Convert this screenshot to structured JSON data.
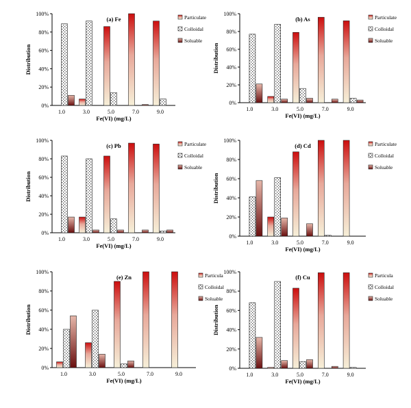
{
  "chart_data": [
    {
      "type": "bar",
      "title": "(a) Fe",
      "xlabel": "Fe(VI) (mg/L)",
      "ylabel": "Distribution",
      "ylim": [
        0,
        100
      ],
      "yticks": [
        "0%",
        "20%",
        "40%",
        "60%",
        "80%",
        "100%"
      ],
      "categories": [
        "1.0",
        "3.0",
        "5.0",
        "7.0",
        "9.0"
      ],
      "legend_position": "right",
      "legend": [
        "Particulate",
        "Colloidal",
        "Soluable"
      ],
      "series": [
        {
          "name": "Particulate",
          "values": [
            0,
            7,
            86,
            100,
            92
          ]
        },
        {
          "name": "Colloidal",
          "values": [
            89,
            92,
            14,
            0,
            7
          ]
        },
        {
          "name": "Soluable",
          "values": [
            11,
            0,
            0,
            1,
            0
          ]
        }
      ]
    },
    {
      "type": "bar",
      "title": "(b) As",
      "xlabel": "Fe(VI) (mg/L)",
      "ylabel": "Distribution",
      "ylim": [
        0,
        100
      ],
      "yticks": [
        "0%",
        "20%",
        "40%",
        "60%",
        "80%",
        "100%"
      ],
      "categories": [
        "1.0",
        "3.0",
        "5.0",
        "7.0",
        "9.0"
      ],
      "legend_position": "right",
      "legend": [
        "Particulate",
        "Colloidal",
        "Soluable"
      ],
      "series": [
        {
          "name": "Particulate",
          "values": [
            0,
            7,
            79,
            96,
            92
          ]
        },
        {
          "name": "Colloidal",
          "values": [
            77,
            88,
            16,
            0,
            5
          ]
        },
        {
          "name": "Soluable",
          "values": [
            21,
            4,
            5,
            4,
            3
          ]
        }
      ]
    },
    {
      "type": "bar",
      "title": "(c) Pb",
      "xlabel": "Fe(VI) (mg/L)",
      "ylabel": "Distribution",
      "ylim": [
        0,
        100
      ],
      "yticks": [
        "0%",
        "20%",
        "40%",
        "60%",
        "80%",
        "100%"
      ],
      "categories": [
        "1.0",
        "3.0",
        "5.0",
        "7.0",
        "9.0"
      ],
      "legend_position": "right",
      "legend": [
        "Particulate",
        "Colloidal",
        "Soluable"
      ],
      "series": [
        {
          "name": "Particulate",
          "values": [
            0,
            17,
            83,
            97,
            96
          ]
        },
        {
          "name": "Colloidal",
          "values": [
            83,
            80,
            15,
            0,
            2
          ]
        },
        {
          "name": "Soluable",
          "values": [
            17,
            3,
            3,
            3,
            3
          ]
        }
      ]
    },
    {
      "type": "bar",
      "title": "(d) Cd",
      "xlabel": "Fe(VI) (mg/L)",
      "ylabel": "Distribution",
      "ylim": [
        0,
        100
      ],
      "yticks": [
        "0%",
        "20%",
        "40%",
        "60%",
        "80%",
        "100%"
      ],
      "categories": [
        "1.0",
        "3.0",
        "5.0",
        "7.0",
        "9.0"
      ],
      "legend_position": "right",
      "legend": [
        "Particulate",
        "Colloidal",
        "Soluable"
      ],
      "series": [
        {
          "name": "Particulate",
          "values": [
            0,
            20,
            88,
            100,
            100
          ]
        },
        {
          "name": "Colloidal",
          "values": [
            41,
            61,
            0,
            1,
            0
          ]
        },
        {
          "name": "Soluable",
          "values": [
            58,
            19,
            13,
            0,
            0
          ]
        }
      ]
    },
    {
      "type": "bar",
      "title": "(e) Zn",
      "xlabel": "Fe(VI) (mg/L)",
      "ylabel": "Distribution",
      "ylim": [
        0,
        100
      ],
      "yticks": [
        "0%",
        "20%",
        "40%",
        "60%",
        "80%",
        "100%"
      ],
      "categories": [
        "1.0",
        "3.0",
        "5.0",
        "7.0",
        "9.0"
      ],
      "legend_position": "right",
      "legend": [
        "Particula",
        "Colloidal",
        "Soluable"
      ],
      "series": [
        {
          "name": "Particula",
          "values": [
            6,
            26,
            90,
            100,
            100
          ]
        },
        {
          "name": "Colloidal",
          "values": [
            40,
            60,
            4,
            0,
            0
          ]
        },
        {
          "name": "Soluable",
          "values": [
            54,
            14,
            7,
            0,
            0
          ]
        }
      ]
    },
    {
      "type": "bar",
      "title": "(f) Cu",
      "xlabel": "Fe(VI) (mg/L)",
      "ylabel": "Distribution",
      "ylim": [
        0,
        100
      ],
      "yticks": [
        "0%",
        "20%",
        "40%",
        "60%",
        "80%",
        "100%"
      ],
      "categories": [
        "1.0",
        "3.0",
        "5.0",
        "7.0",
        "9.0"
      ],
      "legend_position": "right",
      "legend": [
        "Particula",
        "Colloidal",
        "Soluable"
      ],
      "series": [
        {
          "name": "Particula",
          "values": [
            0,
            1,
            83,
            99,
            99
          ]
        },
        {
          "name": "Colloidal",
          "values": [
            68,
            90,
            7,
            0,
            1
          ]
        },
        {
          "name": "Soluable",
          "values": [
            32,
            8,
            9,
            2,
            0
          ]
        }
      ]
    }
  ]
}
